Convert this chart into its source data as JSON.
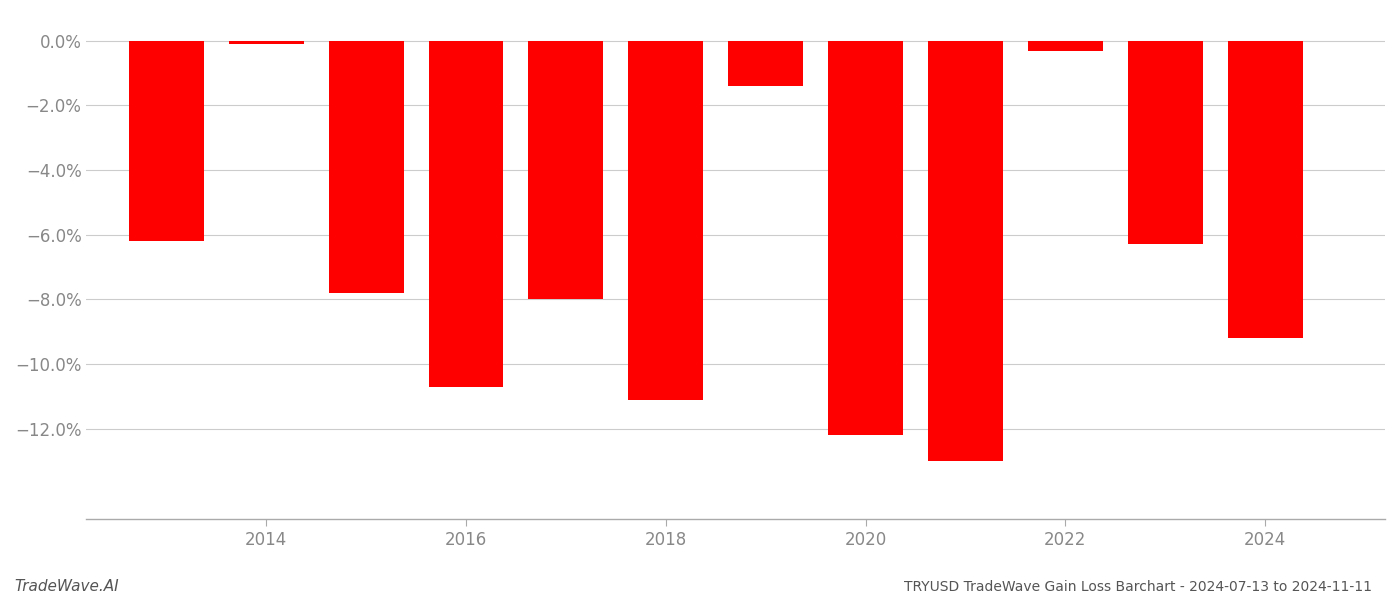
{
  "years": [
    2013,
    2014,
    2015,
    2016,
    2017,
    2018,
    2019,
    2020,
    2021,
    2022,
    2023,
    2024
  ],
  "values": [
    -0.062,
    -0.001,
    -0.078,
    -0.107,
    -0.08,
    -0.111,
    -0.014,
    -0.122,
    -0.13,
    -0.003,
    -0.063,
    -0.092
  ],
  "bar_color": "#ff0000",
  "title": "TRYUSD TradeWave Gain Loss Barchart - 2024-07-13 to 2024-11-11",
  "watermark": "TradeWave.AI",
  "ylim": [
    -0.148,
    0.008
  ],
  "yticks": [
    0.0,
    -0.02,
    -0.04,
    -0.06,
    -0.08,
    -0.1,
    -0.12
  ],
  "xtick_labels": [
    "2014",
    "2016",
    "2018",
    "2020",
    "2022",
    "2024"
  ],
  "xtick_positions": [
    2014,
    2016,
    2018,
    2020,
    2022,
    2024
  ],
  "xlim": [
    2012.2,
    2025.2
  ],
  "background_color": "#ffffff",
  "grid_color": "#cccccc",
  "bar_width": 0.75,
  "title_fontsize": 10,
  "watermark_fontsize": 11,
  "tick_fontsize": 12,
  "ylabel_color": "#888888",
  "xlabel_color": "#888888"
}
